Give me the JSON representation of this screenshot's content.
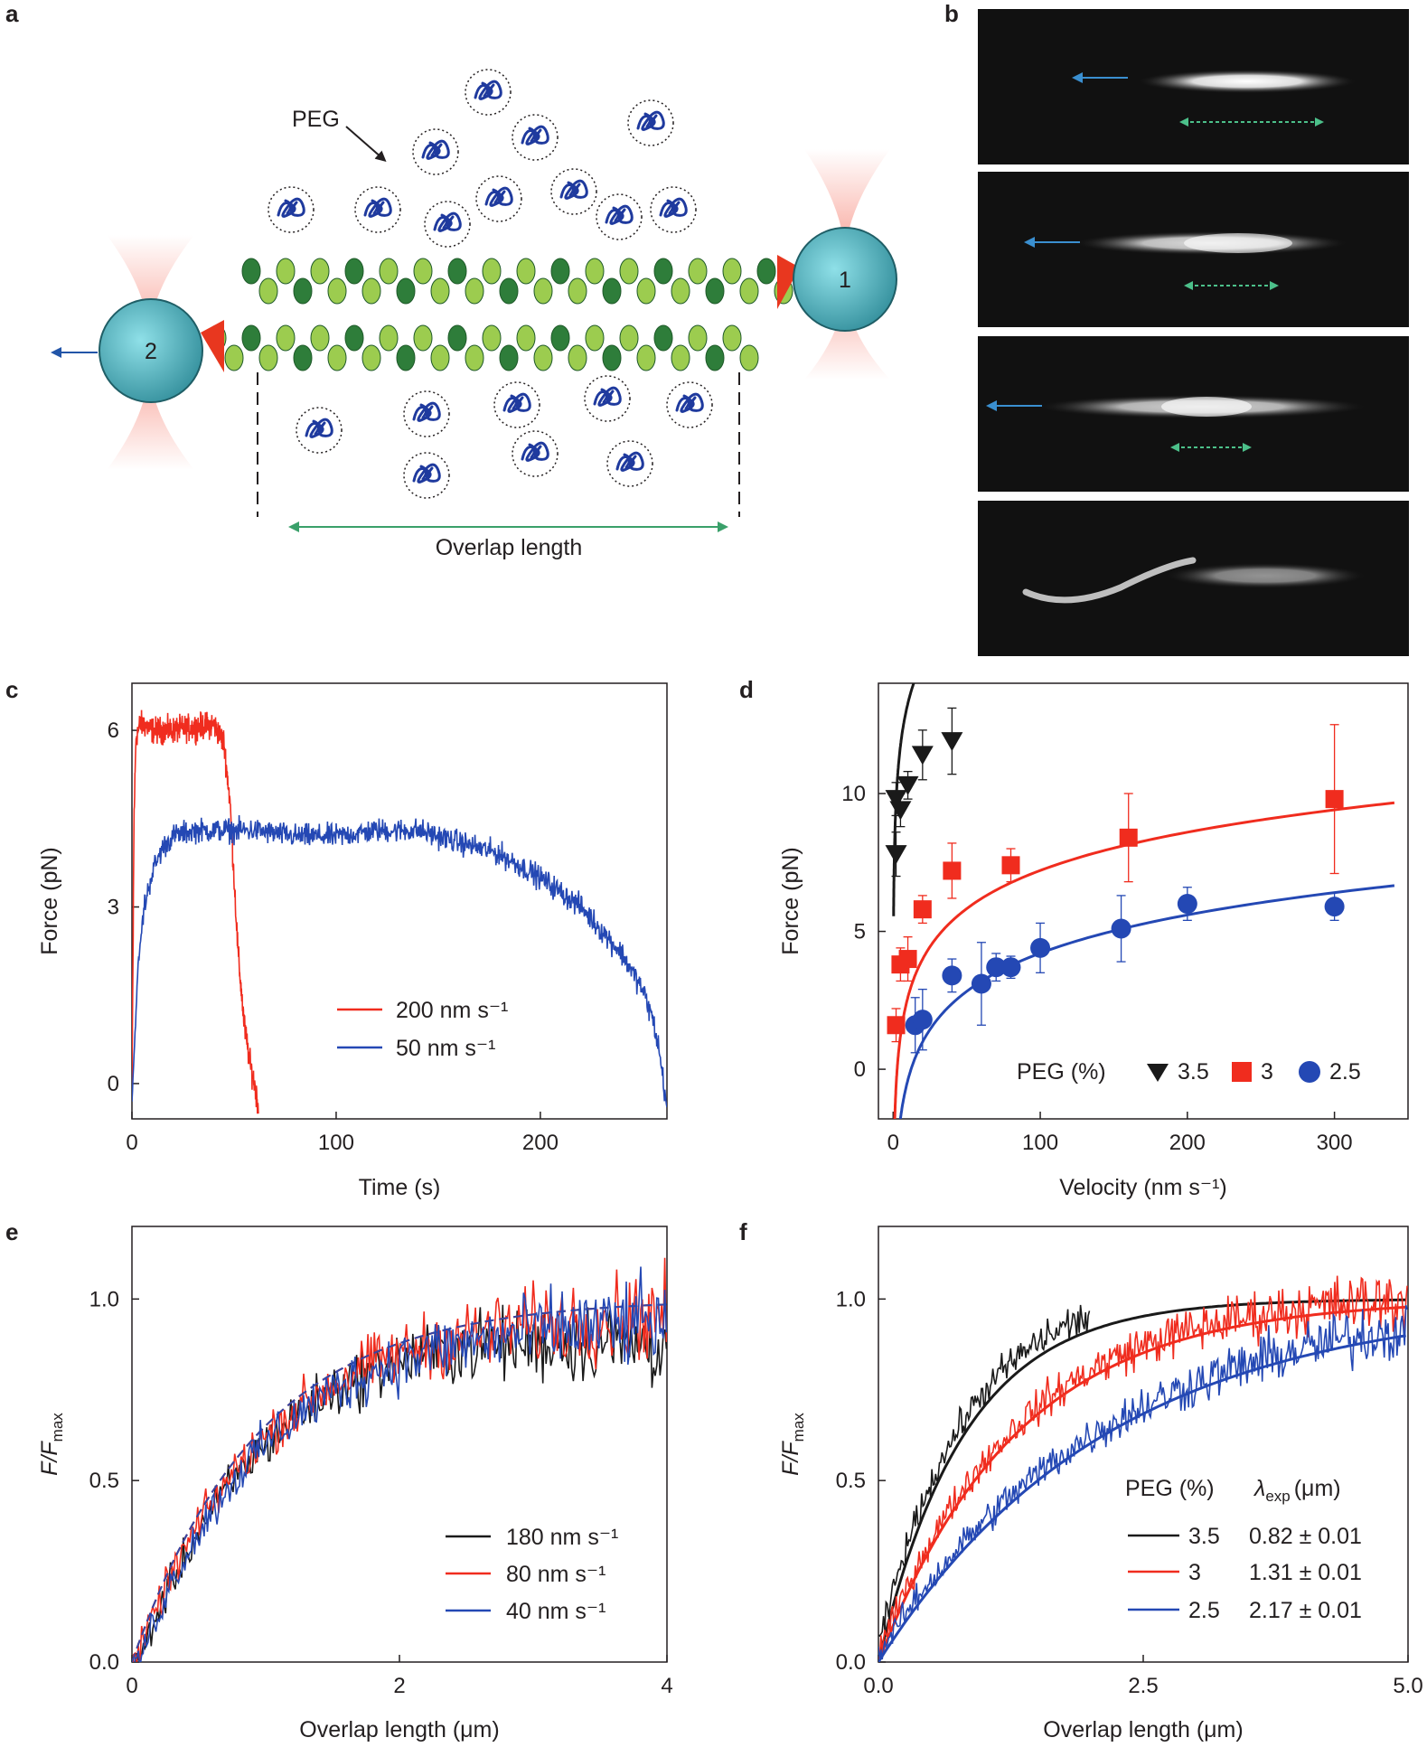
{
  "panel_labels": {
    "a": "a",
    "b": "b",
    "c": "c",
    "d": "d",
    "e": "e",
    "f": "f"
  },
  "schematic": {
    "peg_label": "PEG",
    "bead1_label": "1",
    "bead2_label": "2",
    "overlap_label": "Overlap length",
    "colors": {
      "filament_light": "#9ccc4f",
      "filament_dark": "#2e7d3a",
      "bead": "#3fa3b0",
      "trap": "#f47c6b",
      "peg": "#1f3a9e",
      "arrow_blue": "#2255a8",
      "arrow_green": "#3aa06a"
    }
  },
  "micrographs": {
    "count": 4,
    "colors": {
      "background": "#111111",
      "arrow_blue": "#3a8fd0",
      "arrow_green": "#4cc08a"
    }
  },
  "colors": {
    "red": "#f02c1e",
    "blue": "#2448b4",
    "black": "#1a1a1a"
  },
  "chart_data": [
    {
      "panel": "c",
      "type": "line",
      "xlabel": "Time (s)",
      "ylabel": "Force (pN)",
      "xlim": [
        0,
        262
      ],
      "ylim": [
        -0.6,
        6.8
      ],
      "xticks": [
        0,
        100,
        200
      ],
      "yticks": [
        0,
        3,
        6
      ],
      "legend_position": "lower-center",
      "series": [
        {
          "name": "200 nm s⁻¹",
          "color": "#f02c1e",
          "x": [
            0,
            1,
            2,
            4,
            6,
            10,
            20,
            30,
            40,
            45,
            48,
            50,
            52,
            55,
            58,
            60,
            62
          ],
          "y": [
            -0.3,
            4.5,
            5.9,
            6.1,
            6.1,
            6.0,
            6.0,
            6.05,
            6.1,
            5.8,
            4.8,
            3.5,
            2.2,
            1.0,
            0.3,
            0,
            -0.4
          ]
        },
        {
          "name": "50 nm s⁻¹",
          "color": "#2448b4",
          "x": [
            0,
            3,
            6,
            10,
            15,
            20,
            30,
            40,
            50,
            60,
            80,
            100,
            120,
            140,
            160,
            180,
            200,
            220,
            240,
            250,
            255,
            258,
            262
          ],
          "y": [
            -0.3,
            2.0,
            3.0,
            3.6,
            4.0,
            4.2,
            4.3,
            4.3,
            4.3,
            4.3,
            4.2,
            4.2,
            4.3,
            4.3,
            4.1,
            3.9,
            3.5,
            3.0,
            2.2,
            1.6,
            1.1,
            0.6,
            -0.4
          ]
        }
      ]
    },
    {
      "panel": "d",
      "type": "scatter",
      "xlabel": "Velocity (nm s⁻¹)",
      "ylabel": "Force (pN)",
      "xlim": [
        -10,
        350
      ],
      "ylim": [
        -1.8,
        14
      ],
      "xticks": [
        0,
        100,
        200,
        300
      ],
      "yticks": [
        0,
        5,
        10
      ],
      "legend_title": "PEG (%)",
      "legend_position": "bottom-right",
      "series": [
        {
          "name": "3.5",
          "marker": "triangle",
          "color": "#1a1a1a",
          "points": [
            [
              2,
              7.8,
              0.8
            ],
            [
              2,
              9.8,
              0.6
            ],
            [
              5,
              9.4,
              0.6
            ],
            [
              10,
              10.3,
              0.5
            ],
            [
              20,
              11.4,
              0.9
            ],
            [
              40,
              11.9,
              1.2
            ]
          ],
          "fit": {
            "a": 2.2,
            "b": 8.2
          }
        },
        {
          "name": "3",
          "marker": "square",
          "color": "#f02c1e",
          "points": [
            [
              2,
              1.6,
              0.6
            ],
            [
              5,
              3.8,
              0.6
            ],
            [
              10,
              4.0,
              0.8
            ],
            [
              20,
              5.8,
              0.5
            ],
            [
              40,
              7.2,
              1.0
            ],
            [
              80,
              7.4,
              0.6
            ],
            [
              160,
              8.4,
              1.6
            ],
            [
              300,
              9.8,
              2.7
            ]
          ],
          "fit": {
            "a": 2.0,
            "b": -2.0
          }
        },
        {
          "name": "2.5",
          "marker": "circle",
          "color": "#2448b4",
          "points": [
            [
              15,
              1.6,
              1.0
            ],
            [
              20,
              1.8,
              1.1
            ],
            [
              40,
              3.4,
              0.6
            ],
            [
              60,
              3.1,
              1.5
            ],
            [
              70,
              3.7,
              0.5
            ],
            [
              80,
              3.7,
              0.4
            ],
            [
              100,
              4.4,
              0.9
            ],
            [
              155,
              5.1,
              1.2
            ],
            [
              200,
              6.0,
              0.6
            ],
            [
              300,
              5.9,
              0.5
            ]
          ],
          "fit": {
            "a": 2.0,
            "b": -5.0
          }
        }
      ]
    },
    {
      "panel": "e",
      "type": "line",
      "xlabel": "Overlap length (μm)",
      "ylabel_main": "F/F",
      "ylabel_sub": "max",
      "xlim": [
        0,
        4
      ],
      "ylim": [
        0,
        1.2
      ],
      "xticks": [
        0,
        2,
        4
      ],
      "yticks": [
        "0.0",
        "0.5",
        "1.0"
      ],
      "legend_position": "bottom-right",
      "series": [
        {
          "name": "180 nm s⁻¹",
          "color": "#1a1a1a",
          "lambda": 0.95,
          "offset": 0.0
        },
        {
          "name": "80 nm s⁻¹",
          "color": "#f02c1e",
          "lambda": 0.95,
          "offset": 0.1
        },
        {
          "name": "40 nm s⁻¹",
          "color": "#2448b4",
          "lambda": 0.95,
          "offset": 0.2
        }
      ]
    },
    {
      "panel": "f",
      "type": "line",
      "xlabel": "Overlap length (μm)",
      "ylabel_main": "F/F",
      "ylabel_sub": "max",
      "xlim": [
        0,
        5
      ],
      "ylim": [
        0,
        1.2
      ],
      "xticks": [
        "0.0",
        "2.5",
        "5.0"
      ],
      "yticks": [
        "0.0",
        "0.5",
        "1.0"
      ],
      "legend_header_peg": "PEG (%)",
      "legend_header_lambda_sym": "λ",
      "legend_header_lambda_sub": "exp",
      "legend_header_lambda_unit": "(μm)",
      "legend_position": "bottom-right",
      "series": [
        {
          "name": "3.5",
          "lambda_text": "0.82 ± 0.01",
          "lambda": 0.82,
          "xend": 2.0,
          "color": "#1a1a1a"
        },
        {
          "name": "3",
          "lambda_text": "1.31 ± 0.01",
          "lambda": 1.31,
          "xend": 5.0,
          "color": "#f02c1e"
        },
        {
          "name": "2.5",
          "lambda_text": "2.17 ± 0.01",
          "lambda": 2.17,
          "xend": 5.0,
          "color": "#2448b4"
        }
      ]
    }
  ]
}
